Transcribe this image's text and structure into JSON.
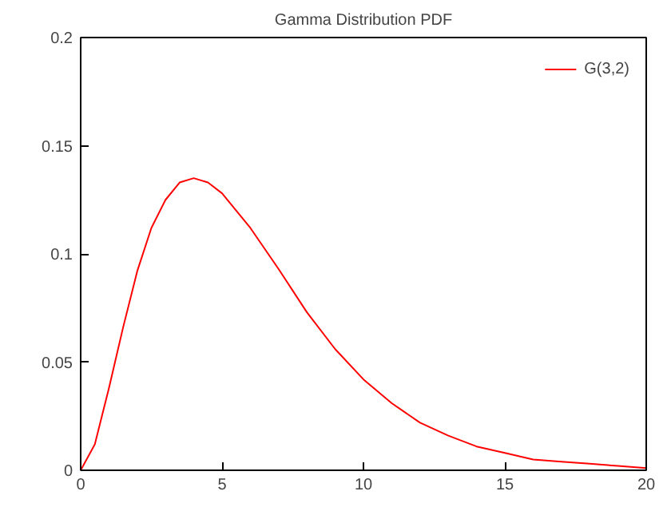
{
  "chart_data": {
    "type": "line",
    "title": "Gamma Distribution PDF",
    "x": [
      0,
      0.5,
      1,
      1.5,
      2,
      2.5,
      3,
      3.5,
      4,
      4.5,
      5,
      6,
      7,
      8,
      9,
      10,
      11,
      12,
      13,
      14,
      15,
      16,
      17,
      18,
      19,
      20
    ],
    "series": [
      {
        "name": "G(3,2)",
        "color": "#ff0000",
        "values": [
          0,
          0.012,
          0.038,
          0.066,
          0.092,
          0.112,
          0.125,
          0.133,
          0.135,
          0.133,
          0.128,
          0.112,
          0.093,
          0.073,
          0.056,
          0.042,
          0.031,
          0.022,
          0.016,
          0.011,
          0.008,
          0.005,
          0.004,
          0.003,
          0.002,
          0.001
        ]
      }
    ],
    "xlim": [
      0,
      20
    ],
    "ylim": [
      0,
      0.2
    ],
    "xticks": [
      0,
      5,
      10,
      15,
      20
    ],
    "yticks": [
      0,
      0.05,
      0.1,
      0.15,
      0.2
    ],
    "grid": false,
    "legend": "top right",
    "marker": "none",
    "line_style": "solid"
  }
}
